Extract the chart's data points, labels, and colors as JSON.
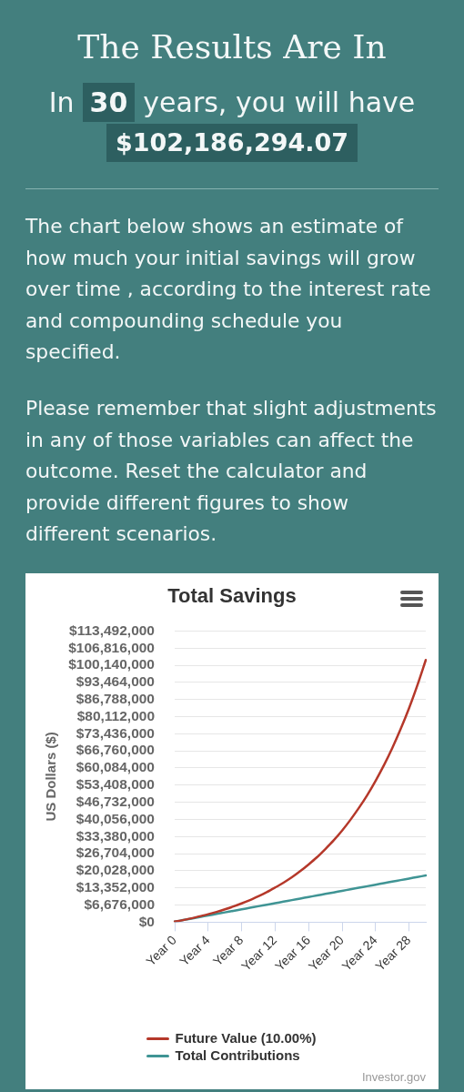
{
  "chart_data": {
    "type": "line",
    "title": "Total Savings",
    "ylabel": "US Dollars ($)",
    "categories": [
      "Year 0",
      null,
      null,
      null,
      "Year 4",
      null,
      null,
      null,
      "Year 8",
      null,
      null,
      null,
      "Year 12",
      null,
      null,
      null,
      "Year 16",
      null,
      null,
      null,
      "Year 20",
      null,
      null,
      null,
      "Year 24",
      null,
      null,
      null,
      "Year 28",
      null,
      null
    ],
    "series": [
      {
        "name": "Future Value (10.00%)",
        "color": "#b5382a",
        "values": [
          200000,
          800000,
          1500000,
          2300000,
          3100000,
          4000000,
          5000000,
          6100000,
          7300000,
          8600000,
          10100000,
          11700000,
          13500000,
          15400000,
          17500000,
          19900000,
          22500000,
          25300000,
          28500000,
          31900000,
          35700000,
          39900000,
          44500000,
          49500000,
          55100000,
          61200000,
          67900000,
          75300000,
          83400000,
          92400000,
          102200000
        ]
      },
      {
        "name": "Total Contributions",
        "color": "#3f9494",
        "values": [
          200000,
          800000,
          1400000,
          2000000,
          2600000,
          3200000,
          3800000,
          4400000,
          5000000,
          5600000,
          6200000,
          6800000,
          7400000,
          8000000,
          8600000,
          9200000,
          9800000,
          10400000,
          11000000,
          11600000,
          12200000,
          12800000,
          13400000,
          14000000,
          14600000,
          15200000,
          15800000,
          16400000,
          17000000,
          17600000,
          18200000
        ]
      }
    ],
    "ylim": [
      0,
      113492000
    ],
    "yticks": [
      {
        "value": 0,
        "label": "$0"
      },
      {
        "value": 6676000,
        "label": "$6,676,000"
      },
      {
        "value": 13352000,
        "label": "$13,352,000"
      },
      {
        "value": 20028000,
        "label": "$20,028,000"
      },
      {
        "value": 26704000,
        "label": "$26,704,000"
      },
      {
        "value": 33380000,
        "label": "$33,380,000"
      },
      {
        "value": 40056000,
        "label": "$40,056,000"
      },
      {
        "value": 46732000,
        "label": "$46,732,000"
      },
      {
        "value": 53408000,
        "label": "$53,408,000"
      },
      {
        "value": 60084000,
        "label": "$60,084,000"
      },
      {
        "value": 66760000,
        "label": "$66,760,000"
      },
      {
        "value": 73436000,
        "label": "$73,436,000"
      },
      {
        "value": 80112000,
        "label": "$80,112,000"
      },
      {
        "value": 86788000,
        "label": "$86,788,000"
      },
      {
        "value": 93464000,
        "label": "$93,464,000"
      },
      {
        "value": 100140000,
        "label": "$100,140,000"
      },
      {
        "value": 106816000,
        "label": "$106,816,000"
      },
      {
        "value": 113492000,
        "label": "$113,492,000"
      }
    ],
    "grid": "y",
    "legend": "bottom",
    "annotations": [
      "The Results Are In",
      "In",
      "30",
      "years, you will have",
      "$102,186,294.07",
      "The chart below shows an estimate of how much your initial savings will grow over time , according to the interest rate and compounding schedule you specified.",
      "Please remember that slight adjustments in any of those variables can affect the outcome. Reset the calculator and provide different figures to show different scenarios.",
      "Investor.gov"
    ]
  }
}
